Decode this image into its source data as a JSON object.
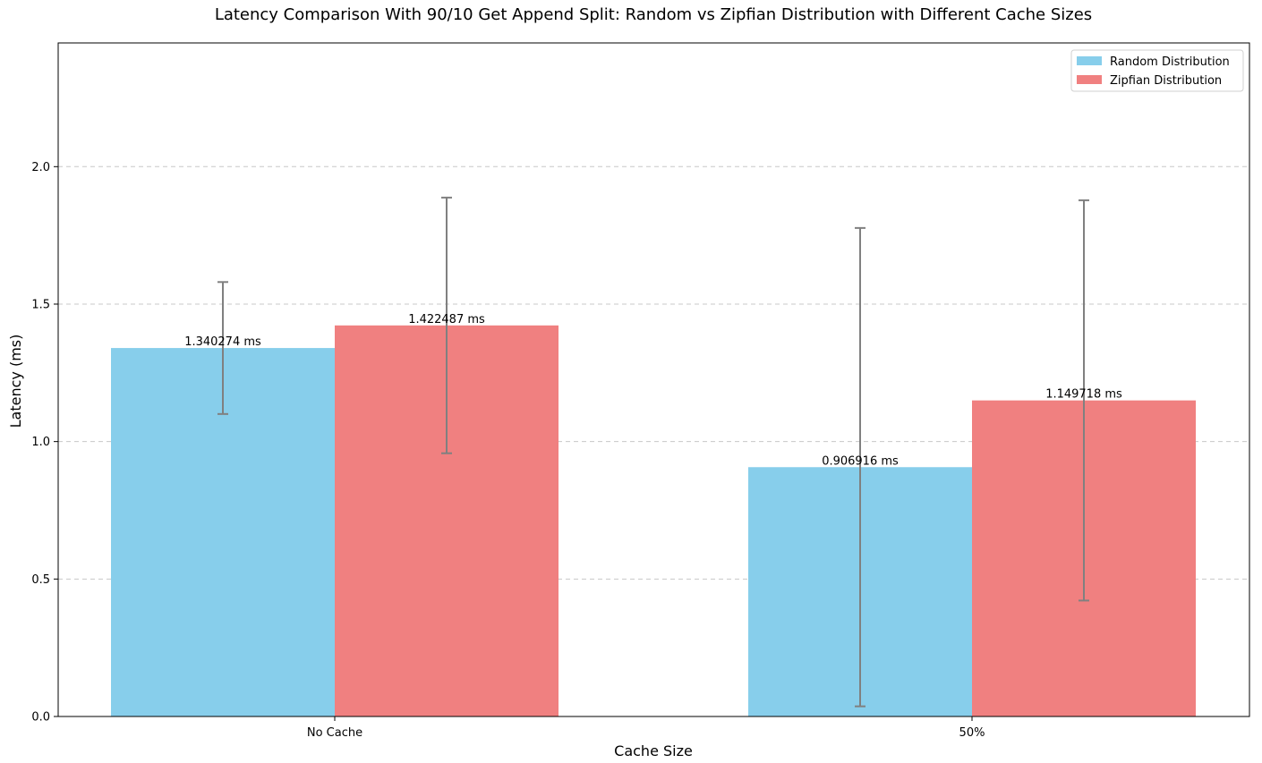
{
  "chart_data": {
    "type": "bar",
    "title": "Latency Comparison With 90/10 Get Append Split: Random vs Zipfian Distribution with Different Cache Sizes",
    "xlabel": "Cache Size",
    "ylabel": "Latency (ms)",
    "categories": [
      "No Cache",
      "50%"
    ],
    "ylim": [
      0,
      2.45
    ],
    "yticks": [
      "0.0",
      "0.5",
      "1.0",
      "1.5",
      "2.0"
    ],
    "grid": "y-dashed",
    "legend_position": "top-right",
    "series": [
      {
        "name": "Random Distribution",
        "color": "#87CEEB",
        "values": [
          1.340274,
          0.906916
        ],
        "errors": [
          0.24,
          0.87
        ],
        "labels": [
          "1.340274 ms",
          "0.906916 ms"
        ]
      },
      {
        "name": "Zipfian Distribution",
        "color": "#F08080",
        "values": [
          1.422487,
          1.149718
        ],
        "errors": [
          0.465,
          0.728
        ],
        "labels": [
          "1.422487 ms",
          "1.149718 ms"
        ]
      }
    ],
    "error_bar_color": "#808080"
  }
}
